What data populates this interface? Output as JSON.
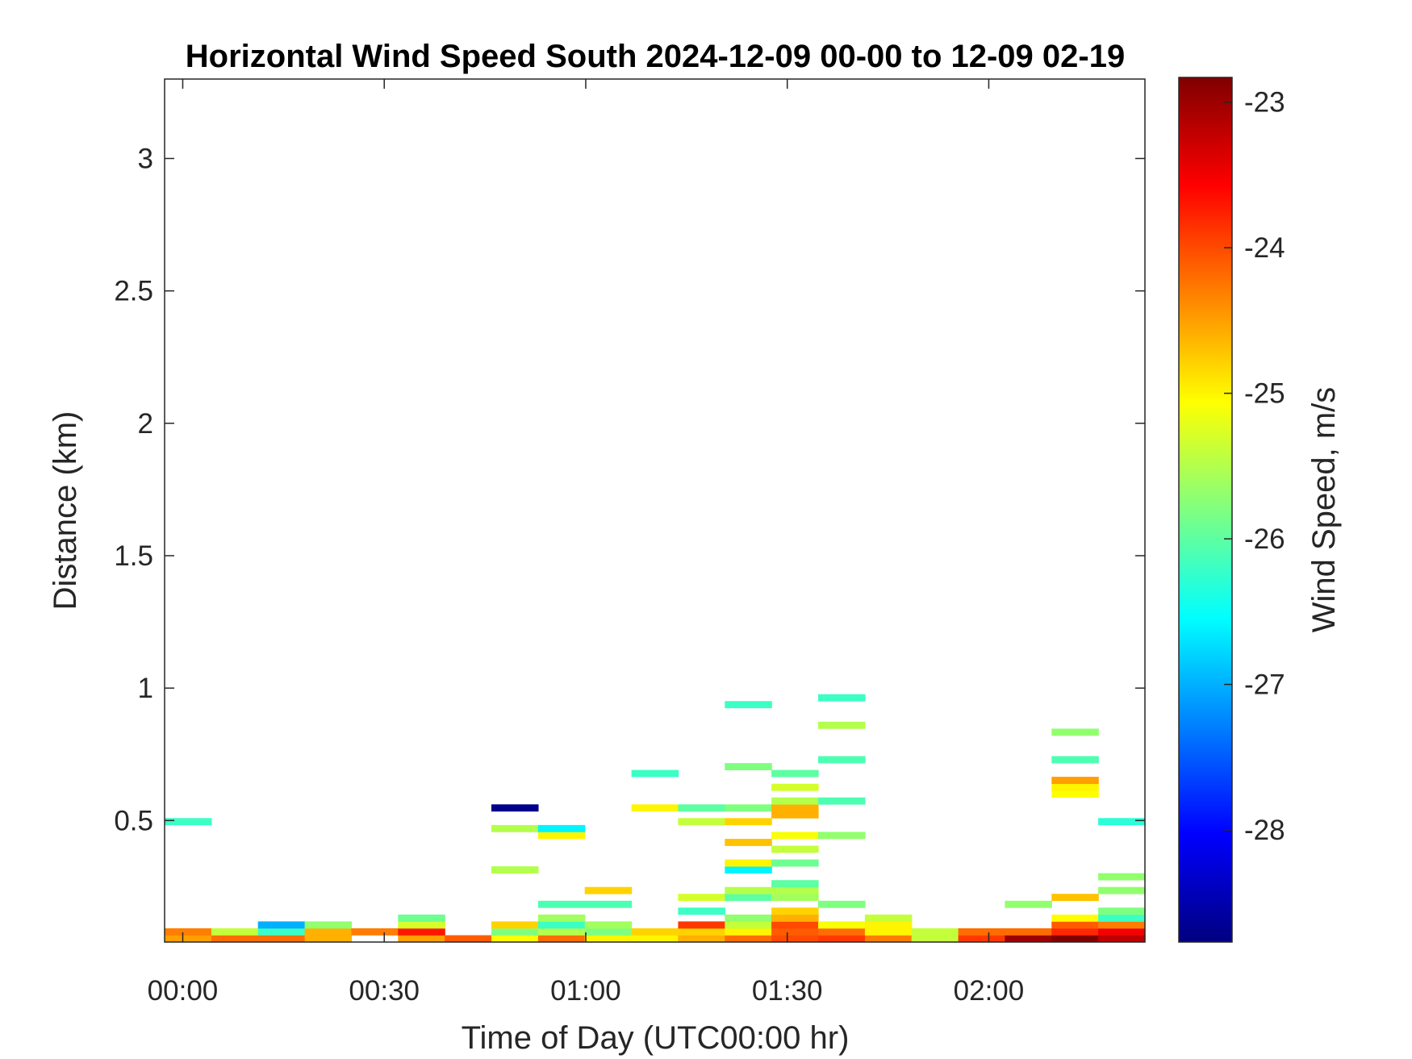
{
  "chart_data": {
    "type": "heatmap",
    "title": "Horizontal Wind Speed South 2024-12-09 00-00 to 12-09 02-19",
    "xlabel": "Time of Day (UTC00:00 hr)",
    "ylabel": "Distance (km)",
    "colorbar_label": "Wind Speed, m/s",
    "colormap": "jet",
    "xlim_min": [
      -2.7,
      143.25
    ],
    "ylim_km": [
      0.041,
      3.3
    ],
    "clim": [
      -28.77,
      -22.83
    ],
    "xticks": [
      {
        "min": 0,
        "label": "00:00"
      },
      {
        "min": 30,
        "label": "00:30"
      },
      {
        "min": 60,
        "label": "01:00"
      },
      {
        "min": 90,
        "label": "01:30"
      },
      {
        "min": 120,
        "label": "02:00"
      }
    ],
    "yticks": [
      {
        "v": 0.5,
        "label": "0.5"
      },
      {
        "v": 1,
        "label": "1"
      },
      {
        "v": 1.5,
        "label": "1.5"
      },
      {
        "v": 2,
        "label": "2"
      },
      {
        "v": 2.5,
        "label": "2.5"
      },
      {
        "v": 3,
        "label": "3"
      }
    ],
    "cticks": [
      {
        "v": -23,
        "label": "-23"
      },
      {
        "v": -24,
        "label": "-24"
      },
      {
        "v": -25,
        "label": "-25"
      },
      {
        "v": -26,
        "label": "-26"
      },
      {
        "v": -27,
        "label": "-27"
      },
      {
        "v": -28,
        "label": "-28"
      }
    ],
    "column_width_min": 6.95,
    "range_bin_km": 0.026,
    "columns": [
      {
        "start_min": -2.7,
        "cells": [
          [
            0.054,
            -24.5
          ],
          [
            0.08,
            -24.3
          ],
          [
            0.496,
            -26.2
          ]
        ]
      },
      {
        "start_min": 4.25,
        "cells": [
          [
            0.054,
            -24.2
          ],
          [
            0.08,
            -25.4
          ]
        ]
      },
      {
        "start_min": 11.2,
        "cells": [
          [
            0.054,
            -24.2
          ],
          [
            0.08,
            -26.2
          ],
          [
            0.106,
            -27.0
          ]
        ]
      },
      {
        "start_min": 18.15,
        "cells": [
          [
            0.054,
            -24.6
          ],
          [
            0.08,
            -24.6
          ],
          [
            0.106,
            -25.7
          ]
        ]
      },
      {
        "start_min": 25.1,
        "cells": [
          [
            0.08,
            -24.3
          ]
        ]
      },
      {
        "start_min": 32.05,
        "cells": [
          [
            0.054,
            -24.5
          ],
          [
            0.08,
            -23.7
          ],
          [
            0.106,
            -25.3
          ],
          [
            0.132,
            -25.9
          ]
        ]
      },
      {
        "start_min": 39.0,
        "cells": [
          [
            0.054,
            -24.1
          ]
        ]
      },
      {
        "start_min": 45.95,
        "cells": [
          [
            0.054,
            -25.05
          ],
          [
            0.08,
            -25.8
          ],
          [
            0.106,
            -24.8
          ],
          [
            0.314,
            -25.5
          ],
          [
            0.47,
            -25.5
          ],
          [
            0.548,
            -28.7
          ]
        ]
      },
      {
        "start_min": 52.9,
        "cells": [
          [
            0.054,
            -24.2
          ],
          [
            0.08,
            -25.5
          ],
          [
            0.106,
            -26.2
          ],
          [
            0.132,
            -25.6
          ],
          [
            0.184,
            -26.1
          ],
          [
            0.444,
            -25.0
          ],
          [
            0.47,
            -26.6
          ]
        ]
      },
      {
        "start_min": 59.85,
        "cells": [
          [
            0.054,
            -25.0
          ],
          [
            0.08,
            -25.8
          ],
          [
            0.106,
            -25.6
          ],
          [
            0.184,
            -26.1
          ],
          [
            0.236,
            -24.8
          ]
        ]
      },
      {
        "start_min": 66.8,
        "cells": [
          [
            0.054,
            -25.0
          ],
          [
            0.08,
            -24.8
          ],
          [
            0.548,
            -25.0
          ],
          [
            0.678,
            -26.2
          ]
        ]
      },
      {
        "start_min": 73.75,
        "cells": [
          [
            0.054,
            -24.6
          ],
          [
            0.08,
            -24.8
          ],
          [
            0.106,
            -23.9
          ],
          [
            0.158,
            -26.2
          ],
          [
            0.21,
            -25.3
          ],
          [
            0.496,
            -25.4
          ],
          [
            0.548,
            -26.0
          ]
        ]
      },
      {
        "start_min": 80.7,
        "cells": [
          [
            0.054,
            -24.2
          ],
          [
            0.08,
            -25.0
          ],
          [
            0.106,
            -25.4
          ],
          [
            0.132,
            -25.7
          ],
          [
            0.21,
            -26.0
          ],
          [
            0.236,
            -25.5
          ],
          [
            0.314,
            -26.6
          ],
          [
            0.34,
            -25.0
          ],
          [
            0.418,
            -24.7
          ],
          [
            0.496,
            -24.8
          ],
          [
            0.548,
            -25.8
          ],
          [
            0.704,
            -25.8
          ],
          [
            0.938,
            -26.2
          ]
        ]
      },
      {
        "start_min": 87.65,
        "cells": [
          [
            0.054,
            -24.0
          ],
          [
            0.08,
            -24.1
          ],
          [
            0.106,
            -24.0
          ],
          [
            0.132,
            -24.6
          ],
          [
            0.158,
            -24.8
          ],
          [
            0.21,
            -25.6
          ],
          [
            0.236,
            -25.5
          ],
          [
            0.262,
            -26.0
          ],
          [
            0.34,
            -25.9
          ],
          [
            0.392,
            -25.4
          ],
          [
            0.444,
            -25.1
          ],
          [
            0.522,
            -24.6
          ],
          [
            0.548,
            -24.6
          ],
          [
            0.574,
            -25.5
          ],
          [
            0.626,
            -25.3
          ],
          [
            0.678,
            -26.0
          ]
        ]
      },
      {
        "start_min": 94.6,
        "cells": [
          [
            0.054,
            -23.9
          ],
          [
            0.08,
            -24.2
          ],
          [
            0.106,
            -25.1
          ],
          [
            0.184,
            -25.8
          ],
          [
            0.444,
            -25.7
          ],
          [
            0.574,
            -26.1
          ],
          [
            0.73,
            -26.1
          ],
          [
            0.86,
            -25.5
          ],
          [
            0.964,
            -26.2
          ]
        ]
      },
      {
        "start_min": 101.55,
        "cells": [
          [
            0.054,
            -24.3
          ],
          [
            0.08,
            -25.0
          ],
          [
            0.106,
            -25.0
          ],
          [
            0.132,
            -25.4
          ]
        ]
      },
      {
        "start_min": 108.5,
        "cells": [
          [
            0.054,
            -25.4
          ],
          [
            0.08,
            -25.4
          ]
        ]
      },
      {
        "start_min": 115.45,
        "cells": [
          [
            0.054,
            -23.9
          ],
          [
            0.08,
            -24.2
          ]
        ]
      },
      {
        "start_min": 122.4,
        "cells": [
          [
            0.054,
            -23.0
          ],
          [
            0.08,
            -24.2
          ],
          [
            0.184,
            -25.7
          ]
        ]
      },
      {
        "start_min": 129.35,
        "cells": [
          [
            0.054,
            -22.85
          ],
          [
            0.08,
            -23.8
          ],
          [
            0.106,
            -24.1
          ],
          [
            0.132,
            -25.05
          ],
          [
            0.21,
            -24.7
          ],
          [
            0.6,
            -25.05
          ],
          [
            0.626,
            -25.0
          ],
          [
            0.652,
            -24.5
          ],
          [
            0.73,
            -26.1
          ],
          [
            0.834,
            -25.7
          ]
        ]
      },
      {
        "start_min": 136.3,
        "cells": [
          [
            0.054,
            -23.2
          ],
          [
            0.08,
            -23.5
          ],
          [
            0.106,
            -24.3
          ],
          [
            0.132,
            -26.2
          ],
          [
            0.158,
            -25.8
          ],
          [
            0.236,
            -25.7
          ],
          [
            0.288,
            -25.7
          ],
          [
            0.496,
            -26.3
          ]
        ]
      }
    ]
  }
}
